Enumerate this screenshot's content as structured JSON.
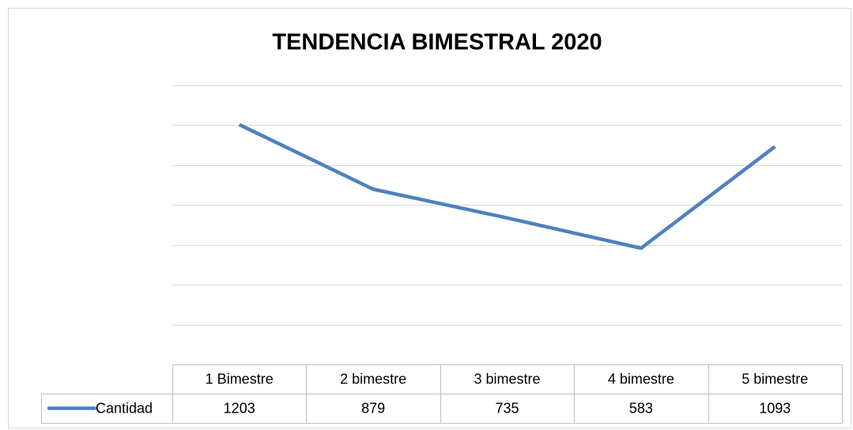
{
  "chart_data": {
    "type": "line",
    "title": "TENDENCIA BIMESTRAL 2020",
    "categories": [
      "1 Bimestre",
      "2 bimestre",
      "3 bimestre",
      "4 bimestre",
      "5 bimestre"
    ],
    "series": [
      {
        "name": "Cantidad",
        "color": "#4f81bd",
        "values": [
          1203,
          879,
          735,
          583,
          1093
        ]
      }
    ],
    "ylim": [
      0,
      1400
    ],
    "yticks": [
      0,
      200,
      400,
      600,
      800,
      1000,
      1200,
      1400
    ],
    "grid": true
  }
}
